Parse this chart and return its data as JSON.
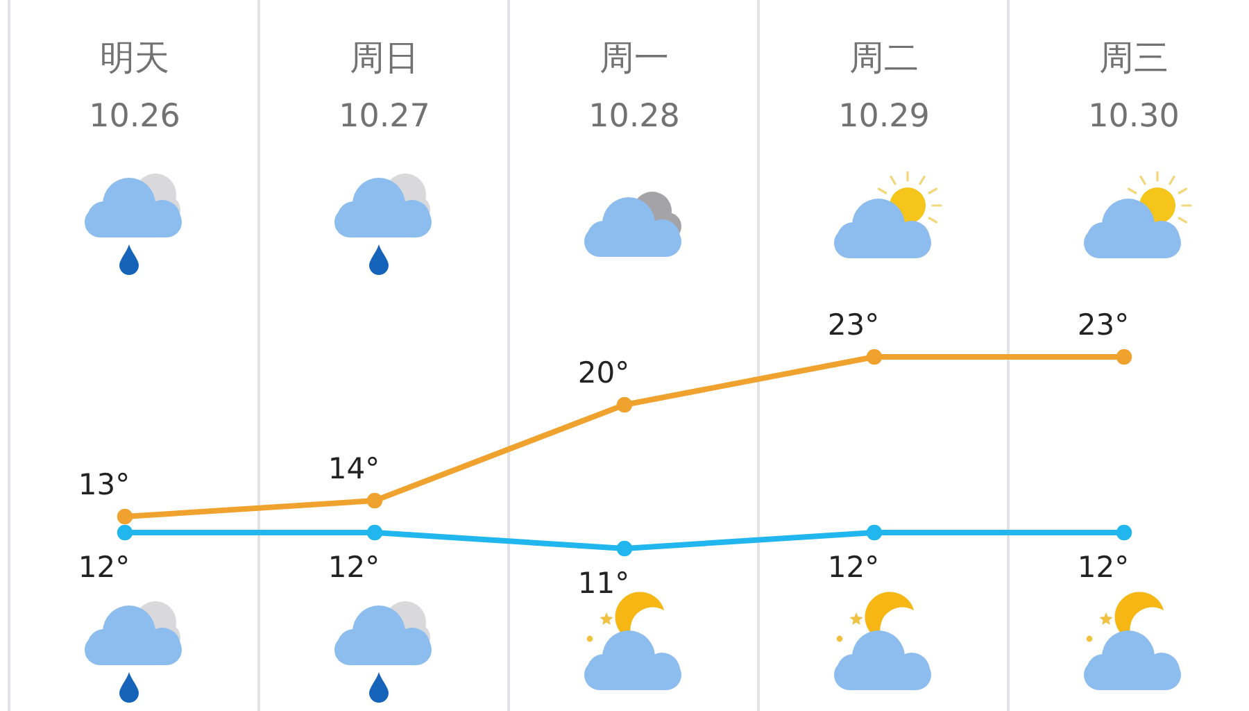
{
  "chart_data": {
    "type": "line",
    "categories": [
      "明天\n10.26",
      "周日\n10.27",
      "周一\n10.28",
      "周二\n10.29",
      "周三\n10.30"
    ],
    "series": [
      {
        "color": "#f0a22e",
        "values": [
          13,
          14,
          20,
          23,
          23
        ],
        "value_labels": [
          "13°",
          "14°",
          "20°",
          "23°",
          "23°"
        ]
      },
      {
        "color": "#22b6ee",
        "values": [
          12,
          12,
          11,
          12,
          12
        ],
        "value_labels": [
          "12°",
          "12°",
          "11°",
          "12°",
          "12°"
        ]
      }
    ],
    "tick_labels": "x",
    "grid": "x",
    "marker": "circle",
    "line_style": "solid"
  }
}
